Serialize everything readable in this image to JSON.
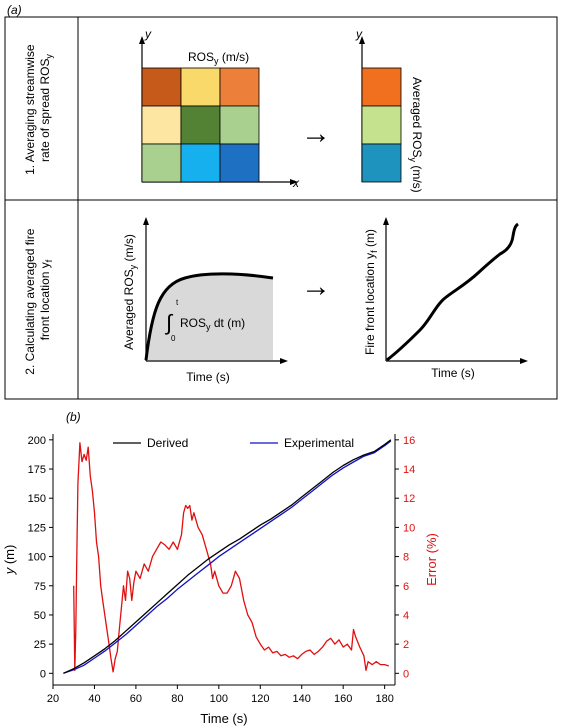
{
  "panel_a": {
    "label": "(a)",
    "row1": {
      "step_line1": "1. Averaging streamwise",
      "step_line2": "rate of spread ROS",
      "step_sub": "y",
      "grid_title": "ROS",
      "grid_title_sub": "y",
      "grid_title_unit": " (m/s)",
      "y_axis": "y",
      "x_axis": "x",
      "arrow": "→",
      "avg_label": "Averaged ROS",
      "avg_label_sub": "y",
      "avg_label_unit": " (m/s)",
      "grid_colors": [
        "#c65a1a",
        "#f9d96a",
        "#ec7f39",
        "#fce6a2",
        "#548235",
        "#a9d08e",
        "#a9d08e",
        "#17b0ef",
        "#1e70c2"
      ],
      "avg_colors": [
        "#f1701f",
        "#c5e38f",
        "#1d93bd"
      ]
    },
    "row2": {
      "step_line1": "2. Calculating averaged fire",
      "step_line2": "front location y",
      "step_sub": "f",
      "left_ylabel": "Averaged ROS",
      "left_ylabel_sub": "y",
      "left_ylabel_unit": " (m/s)",
      "integral_upper": "t",
      "integral_lower": "0",
      "integral_text": "ROS",
      "integral_sub": "y",
      "integral_tail": " dt (m)",
      "left_xlabel": "Time (s)",
      "arrow": "→",
      "right_ylabel": "Fire front location y",
      "right_ylabel_sub": "f",
      "right_ylabel_unit": " (m)",
      "right_xlabel": "Time (s)"
    }
  },
  "panel_b": {
    "label": "(b)",
    "chart_data": {
      "type": "line",
      "xlabel": "Time (s)",
      "ylabel": "y (m)",
      "ylabel_right": "Error (%)",
      "xlim": [
        20,
        185
      ],
      "ylim": [
        -10,
        205
      ],
      "ylim_right": [
        -0.8,
        16.4
      ],
      "xticks": [
        20,
        40,
        60,
        80,
        100,
        120,
        140,
        160,
        180
      ],
      "yticks": [
        0,
        25,
        50,
        75,
        100,
        125,
        150,
        175,
        200
      ],
      "yticks_right": [
        0,
        2,
        4,
        6,
        8,
        10,
        12,
        14,
        16
      ],
      "legend_position": "top",
      "colors": {
        "derived": "#000000",
        "experimental": "#1010c8",
        "error": "#e01010"
      },
      "series": [
        {
          "name": "Derived",
          "axis": "left",
          "x": [
            25,
            30,
            35,
            40,
            45,
            50,
            55,
            60,
            65,
            70,
            75,
            80,
            85,
            90,
            95,
            100,
            105,
            110,
            115,
            120,
            125,
            130,
            135,
            140,
            145,
            150,
            155,
            160,
            165,
            170,
            175,
            180,
            183
          ],
          "y": [
            0,
            4,
            9,
            15,
            21,
            28,
            36,
            44,
            52,
            60,
            68,
            76,
            84,
            91,
            98,
            104,
            110,
            115,
            121,
            127,
            132,
            138,
            144,
            151,
            158,
            165,
            172,
            178,
            183,
            187,
            190,
            196,
            200
          ]
        },
        {
          "name": "Experimental",
          "axis": "left",
          "x": [
            25,
            30,
            35,
            40,
            45,
            50,
            55,
            60,
            65,
            70,
            75,
            80,
            85,
            90,
            95,
            100,
            105,
            110,
            115,
            120,
            125,
            130,
            135,
            140,
            145,
            150,
            155,
            160,
            165,
            170,
            175,
            180,
            183
          ],
          "y": [
            0,
            3,
            7,
            13,
            19,
            26,
            33,
            41,
            49,
            57,
            64,
            72,
            79,
            86,
            93,
            100,
            106,
            112,
            118,
            124,
            130,
            136,
            142,
            149,
            156,
            163,
            170,
            176,
            181,
            186,
            189,
            195,
            199
          ]
        },
        {
          "name": "Error",
          "axis": "right",
          "x": [
            30,
            30.5,
            31,
            31.5,
            32,
            33,
            34,
            35,
            36,
            37,
            38,
            39,
            40,
            41,
            42,
            43,
            44,
            45,
            46,
            47,
            48,
            49,
            50,
            51,
            52,
            53,
            54,
            55,
            56,
            57,
            58,
            59,
            60,
            62,
            64,
            66,
            68,
            70,
            72,
            74,
            76,
            78,
            80,
            82,
            83,
            84,
            85,
            86,
            87,
            88,
            90,
            92,
            94,
            96,
            97,
            98,
            100,
            102,
            104,
            106,
            108,
            110,
            112,
            114,
            116,
            118,
            120,
            122,
            124,
            126,
            128,
            130,
            132,
            134,
            136,
            138,
            140,
            142,
            144,
            146,
            148,
            150,
            152,
            154,
            156,
            158,
            160,
            162,
            164,
            165,
            166,
            168,
            170,
            171,
            172,
            174,
            176,
            178,
            180,
            182
          ],
          "y": [
            6,
            0.2,
            3,
            8,
            13,
            15.8,
            14.5,
            15,
            14.6,
            15.5,
            13.5,
            12.5,
            11,
            9,
            8,
            6,
            5,
            4,
            3,
            2,
            1,
            0.1,
            1,
            1.5,
            3,
            4.5,
            6,
            5,
            7,
            6.5,
            5,
            6.2,
            7,
            6.5,
            7.5,
            7,
            8,
            8.5,
            9,
            8.8,
            8.5,
            9,
            8.5,
            9.5,
            11,
            11.5,
            11.3,
            11.5,
            10.5,
            11,
            10,
            9.5,
            8.5,
            7.5,
            6.5,
            7,
            6,
            5.5,
            5.5,
            6,
            7,
            6.5,
            5,
            4,
            3.5,
            2.5,
            2,
            1.6,
            1.8,
            1.4,
            1.5,
            1.2,
            1.3,
            1.1,
            1.2,
            1,
            1.3,
            1.5,
            1.6,
            1.3,
            1.5,
            1.8,
            2.2,
            2.4,
            2,
            2.3,
            1.8,
            2,
            1.6,
            3,
            2.5,
            1.8,
            1.2,
            0.2,
            0.8,
            0.6,
            0.8,
            0.6,
            0.6,
            0.5
          ]
        }
      ]
    }
  }
}
